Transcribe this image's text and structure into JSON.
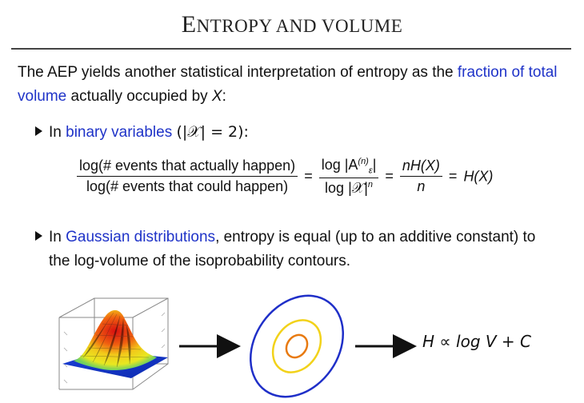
{
  "slide": {
    "title_first": "E",
    "title_rest": "NTROPY AND VOLUME"
  },
  "intro": {
    "before": "The AEP yields another statistical interpretation of entropy as the ",
    "highlight": "fraction of total volume",
    "after": " actually occupied by ",
    "var": "X",
    "end": ":"
  },
  "bullet1": {
    "prefix": "In ",
    "highlight": "binary variables",
    "condition": "(|𝒳| = 2):"
  },
  "equation": {
    "num1": "log(# events that actually happen)",
    "den1": "log(# events that could happen)",
    "num2": "log |A",
    "num2_sup": "(n)",
    "num2_sub": "ε",
    "num2_end": "|",
    "den2": "log |𝒳|",
    "den2_sup": "n",
    "num3": "nH(X)",
    "den3": "n",
    "rhs": "H(X)",
    "eq_sign": "="
  },
  "bullet2": {
    "prefix": "In ",
    "highlight": "Gaussian distributions",
    "line1_rest": ", entropy is equal (up to an additive constant) to",
    "line2": "the log-volume of the isoprobability contours."
  },
  "relation": {
    "text": "H ∝ log V + C"
  },
  "colors": {
    "accent": "#1f33c8",
    "contour_outer": "#1f2fc8",
    "contour_middle": "#f2d21a",
    "contour_inner": "#e87a10"
  }
}
